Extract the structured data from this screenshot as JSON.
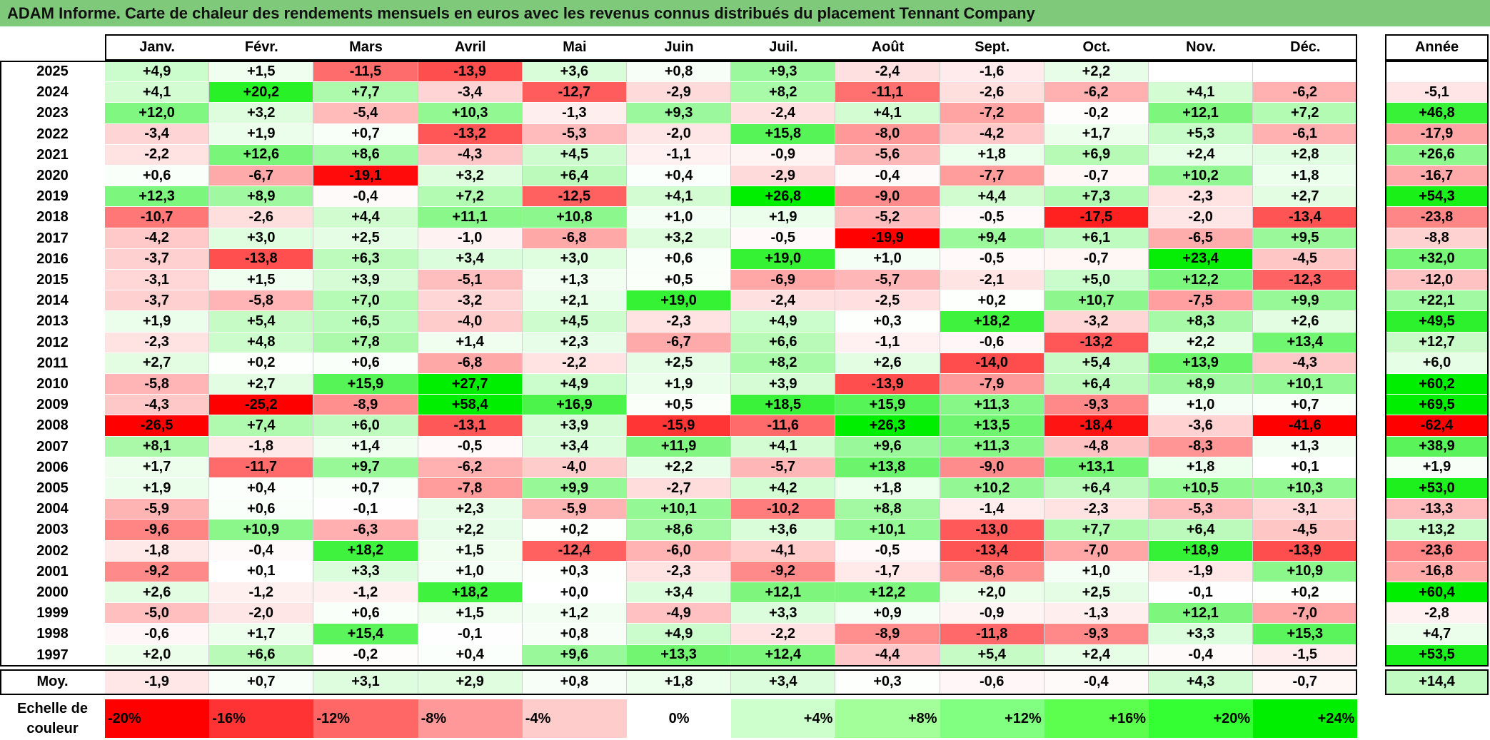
{
  "title": "ADAM Informe. Carte de chaleur des rendements mensuels en euros avec les revenus connus distribués du placement Tennant Company",
  "chart_data": {
    "type": "heatmap",
    "title": "ADAM Informe. Carte de chaleur des rendements mensuels en euros avec les revenus connus distribués du placement Tennant Company",
    "columns": [
      "Janv.",
      "Févr.",
      "Mars",
      "Avril",
      "Mai",
      "Juin",
      "Juil.",
      "Août",
      "Sept.",
      "Oct.",
      "Nov.",
      "Déc."
    ],
    "year_column": "Année",
    "rows": [
      {
        "year": "2025",
        "values": [
          "+4,9",
          "+1,5",
          "-11,5",
          "-13,9",
          "+3,6",
          "+0,8",
          "+9,3",
          "-2,4",
          "-1,6",
          "+2,2",
          "",
          ""
        ],
        "annual": ""
      },
      {
        "year": "2024",
        "values": [
          "+4,1",
          "+20,2",
          "+7,7",
          "-3,4",
          "-12,7",
          "-2,9",
          "+8,2",
          "-11,1",
          "-2,6",
          "-6,2",
          "+4,1",
          "-6,2"
        ],
        "annual": "-5,1"
      },
      {
        "year": "2023",
        "values": [
          "+12,0",
          "+3,2",
          "-5,4",
          "+10,3",
          "-1,3",
          "+9,3",
          "-2,4",
          "+4,1",
          "-7,2",
          "-0,2",
          "+12,1",
          "+7,2"
        ],
        "annual": "+46,8"
      },
      {
        "year": "2022",
        "values": [
          "-3,4",
          "+1,9",
          "+0,7",
          "-13,2",
          "-5,3",
          "-2,0",
          "+15,8",
          "-8,0",
          "-4,2",
          "+1,7",
          "+5,3",
          "-6,1"
        ],
        "annual": "-17,9"
      },
      {
        "year": "2021",
        "values": [
          "-2,2",
          "+12,6",
          "+8,6",
          "-4,3",
          "+4,5",
          "-1,1",
          "-0,9",
          "-5,6",
          "+1,8",
          "+6,9",
          "+2,4",
          "+2,8"
        ],
        "annual": "+26,6"
      },
      {
        "year": "2020",
        "values": [
          "+0,6",
          "-6,7",
          "-19,1",
          "+3,2",
          "+6,4",
          "+0,4",
          "-2,9",
          "-0,4",
          "-7,7",
          "-0,7",
          "+10,2",
          "+1,8"
        ],
        "annual": "-16,7"
      },
      {
        "year": "2019",
        "values": [
          "+12,3",
          "+8,9",
          "-0,4",
          "+7,2",
          "-12,5",
          "+4,1",
          "+26,8",
          "-9,0",
          "+4,4",
          "+7,3",
          "-2,3",
          "+2,7"
        ],
        "annual": "+54,3"
      },
      {
        "year": "2018",
        "values": [
          "-10,7",
          "-2,6",
          "+4,4",
          "+11,1",
          "+10,8",
          "+1,0",
          "+1,9",
          "-5,2",
          "-0,5",
          "-17,5",
          "-2,0",
          "-13,4"
        ],
        "annual": "-23,8"
      },
      {
        "year": "2017",
        "values": [
          "-4,2",
          "+3,0",
          "+2,5",
          "-1,0",
          "-6,8",
          "+3,2",
          "-0,5",
          "-19,9",
          "+9,4",
          "+6,1",
          "-6,5",
          "+9,5"
        ],
        "annual": "-8,8"
      },
      {
        "year": "2016",
        "values": [
          "-3,7",
          "-13,8",
          "+6,3",
          "+3,4",
          "+3,0",
          "+0,6",
          "+19,0",
          "+1,0",
          "-0,5",
          "-0,7",
          "+23,4",
          "-4,5"
        ],
        "annual": "+32,0"
      },
      {
        "year": "2015",
        "values": [
          "-3,1",
          "+1,5",
          "+3,9",
          "-5,1",
          "+1,3",
          "+0,5",
          "-6,9",
          "-5,7",
          "-2,1",
          "+5,0",
          "+12,2",
          "-12,3"
        ],
        "annual": "-12,0"
      },
      {
        "year": "2014",
        "values": [
          "-3,7",
          "-5,8",
          "+7,0",
          "-3,2",
          "+2,1",
          "+19,0",
          "-2,4",
          "-2,5",
          "+0,2",
          "+10,7",
          "-7,5",
          "+9,9"
        ],
        "annual": "+22,1"
      },
      {
        "year": "2013",
        "values": [
          "+1,9",
          "+5,4",
          "+6,5",
          "-4,0",
          "+4,5",
          "-2,3",
          "+4,9",
          "+0,3",
          "+18,2",
          "-3,2",
          "+8,3",
          "+2,6"
        ],
        "annual": "+49,5"
      },
      {
        "year": "2012",
        "values": [
          "-2,3",
          "+4,8",
          "+7,8",
          "+1,4",
          "+2,3",
          "-6,7",
          "+6,6",
          "-1,1",
          "-0,6",
          "-13,2",
          "+2,2",
          "+13,4"
        ],
        "annual": "+12,7"
      },
      {
        "year": "2011",
        "values": [
          "+2,7",
          "+0,2",
          "+0,6",
          "-6,8",
          "-2,2",
          "+2,5",
          "+8,2",
          "+2,6",
          "-14,0",
          "+5,4",
          "+13,9",
          "-4,3"
        ],
        "annual": "+6,0"
      },
      {
        "year": "2010",
        "values": [
          "-5,8",
          "+2,7",
          "+15,9",
          "+27,7",
          "+4,9",
          "+1,9",
          "+3,9",
          "-13,9",
          "-7,9",
          "+6,4",
          "+8,9",
          "+10,1"
        ],
        "annual": "+60,2"
      },
      {
        "year": "2009",
        "values": [
          "-4,3",
          "-25,2",
          "-8,9",
          "+58,4",
          "+16,9",
          "+0,5",
          "+18,5",
          "+15,9",
          "+11,3",
          "-9,3",
          "+1,0",
          "+0,7"
        ],
        "annual": "+69,5"
      },
      {
        "year": "2008",
        "values": [
          "-26,5",
          "+7,4",
          "+6,0",
          "-13,1",
          "+3,9",
          "-15,9",
          "-11,6",
          "+26,3",
          "+13,5",
          "-18,4",
          "-3,6",
          "-41,6"
        ],
        "annual": "-62,4"
      },
      {
        "year": "2007",
        "values": [
          "+8,1",
          "-1,8",
          "+1,4",
          "-0,5",
          "+3,4",
          "+11,9",
          "+4,1",
          "+9,6",
          "+11,3",
          "-4,8",
          "-8,3",
          "+1,3"
        ],
        "annual": "+38,9"
      },
      {
        "year": "2006",
        "values": [
          "+1,7",
          "-11,7",
          "+9,7",
          "-6,2",
          "-4,0",
          "+2,2",
          "-5,7",
          "+13,8",
          "-9,0",
          "+13,1",
          "+1,8",
          "+0,1"
        ],
        "annual": "+1,9"
      },
      {
        "year": "2005",
        "values": [
          "+1,9",
          "+0,4",
          "+0,7",
          "-7,8",
          "+9,9",
          "-2,7",
          "+4,2",
          "+1,8",
          "+10,2",
          "+6,4",
          "+10,5",
          "+10,3"
        ],
        "annual": "+53,0"
      },
      {
        "year": "2004",
        "values": [
          "-5,9",
          "+0,6",
          "-0,1",
          "+2,3",
          "-5,9",
          "+10,1",
          "-10,2",
          "+8,8",
          "-1,4",
          "-2,3",
          "-5,3",
          "-3,1"
        ],
        "annual": "-13,3"
      },
      {
        "year": "2003",
        "values": [
          "-9,6",
          "+10,9",
          "-6,3",
          "+2,2",
          "+0,2",
          "+8,6",
          "+3,6",
          "+10,1",
          "-13,0",
          "+7,7",
          "+6,4",
          "-4,5"
        ],
        "annual": "+13,2"
      },
      {
        "year": "2002",
        "values": [
          "-1,8",
          "-0,4",
          "+18,2",
          "+1,5",
          "-12,4",
          "-6,0",
          "-4,1",
          "-0,5",
          "-13,4",
          "-7,0",
          "+18,9",
          "-13,9"
        ],
        "annual": "-23,6"
      },
      {
        "year": "2001",
        "values": [
          "-9,2",
          "+0,1",
          "+3,3",
          "+1,0",
          "+0,3",
          "-2,3",
          "-9,2",
          "-1,7",
          "-8,6",
          "+1,0",
          "-1,9",
          "+10,9"
        ],
        "annual": "-16,8"
      },
      {
        "year": "2000",
        "values": [
          "+2,6",
          "-1,2",
          "-1,2",
          "+18,2",
          "+0,0",
          "+3,4",
          "+12,1",
          "+12,2",
          "+2,0",
          "+2,5",
          "-0,1",
          "+0,2"
        ],
        "annual": "+60,4"
      },
      {
        "year": "1999",
        "values": [
          "-5,0",
          "-2,0",
          "+0,6",
          "+1,5",
          "+1,2",
          "-4,9",
          "+3,3",
          "+0,9",
          "-0,9",
          "-1,3",
          "+12,1",
          "-7,0"
        ],
        "annual": "-2,8"
      },
      {
        "year": "1998",
        "values": [
          "-0,6",
          "+1,7",
          "+15,4",
          "-0,1",
          "+0,8",
          "+4,9",
          "-2,2",
          "-8,9",
          "-11,8",
          "-9,3",
          "+3,3",
          "+15,3"
        ],
        "annual": "+4,7"
      },
      {
        "year": "1997",
        "values": [
          "+2,0",
          "+6,6",
          "-0,2",
          "+0,4",
          "+9,6",
          "+13,3",
          "+12,4",
          "-4,4",
          "+5,4",
          "+2,4",
          "-0,4",
          "-1,5"
        ],
        "annual": "+53,5"
      }
    ],
    "average": {
      "label": "Moy.",
      "values": [
        "-1,9",
        "+0,7",
        "+3,1",
        "+2,9",
        "+0,8",
        "+1,8",
        "+3,4",
        "+0,3",
        "-0,6",
        "-0,4",
        "+4,3",
        "-0,7"
      ],
      "annual": "+14,4"
    },
    "color_scale": {
      "label": "Echelle de couleur",
      "steps": [
        {
          "label": "-20%",
          "value": -20,
          "color": "#ff0000"
        },
        {
          "label": "-16%",
          "value": -16,
          "color": "#ff3333"
        },
        {
          "label": "-12%",
          "value": -12,
          "color": "#ff6666"
        },
        {
          "label": "-8%",
          "value": -8,
          "color": "#ff9999"
        },
        {
          "label": "-4%",
          "value": -4,
          "color": "#ffcccc"
        },
        {
          "label": "0%",
          "value": 0,
          "color": "#ffffff"
        },
        {
          "label": "+4%",
          "value": 4,
          "color": "#ccffcc"
        },
        {
          "label": "+8%",
          "value": 8,
          "color": "#a3ff99"
        },
        {
          "label": "+12%",
          "value": 12,
          "color": "#80ff80"
        },
        {
          "label": "+16%",
          "value": 16,
          "color": "#5cff4d"
        },
        {
          "label": "+20%",
          "value": 20,
          "color": "#33ff33"
        },
        {
          "label": "+24%",
          "value": 24,
          "color": "#00ee00"
        }
      ]
    }
  }
}
